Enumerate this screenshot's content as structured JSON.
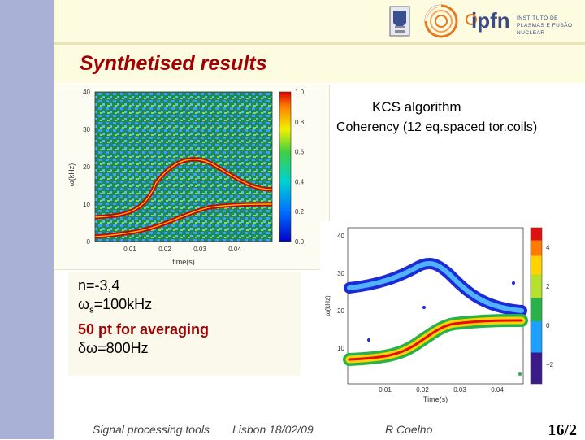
{
  "header": {
    "ipfn_logo_text": "ipfn",
    "ipfn_logo_subtext": "INSTITUTO DE PLASMAS E FUSÃO NUCLEAR"
  },
  "title": "Synthetised results",
  "captions": {
    "algorithm": "KCS algorithm",
    "coherency": "Coherency (12 eq.spaced tor.coils)"
  },
  "left_plot": {
    "ylabel": "ω(kHz)",
    "xlabel": "time(s)",
    "yticks": [
      "0",
      "10",
      "20",
      "30",
      "40"
    ],
    "xticks": [
      "0.01",
      "0.02",
      "0.03",
      "0.04"
    ],
    "colorbar_ticks": [
      "0.0",
      "0.2",
      "0.4",
      "0.6",
      "0.8",
      "1.0"
    ]
  },
  "right_plot": {
    "ylabel": "ω(kHz)",
    "xlabel": "Time(s)",
    "yticks": [
      "10",
      "20",
      "30",
      "40"
    ],
    "xticks": [
      "0.01",
      "0.02",
      "0.03",
      "0.04"
    ],
    "colorbar_ticks": [
      "−2",
      "0",
      "2",
      "4"
    ]
  },
  "info": {
    "n": "n=-3,4",
    "ws_prefix": "ω",
    "ws_sub": "s",
    "ws_value": "=100kHz",
    "averaging": "50 pt for averaging",
    "dw": "δω=800Hz"
  },
  "footer": {
    "left": "Signal processing tools",
    "middle": "Lisbon 18/02/09",
    "author": "R Coelho",
    "page": "16/2"
  },
  "colors": {
    "title": "#a00000",
    "left_band": "#aab1d6",
    "top_band": "#fdfbe0"
  }
}
